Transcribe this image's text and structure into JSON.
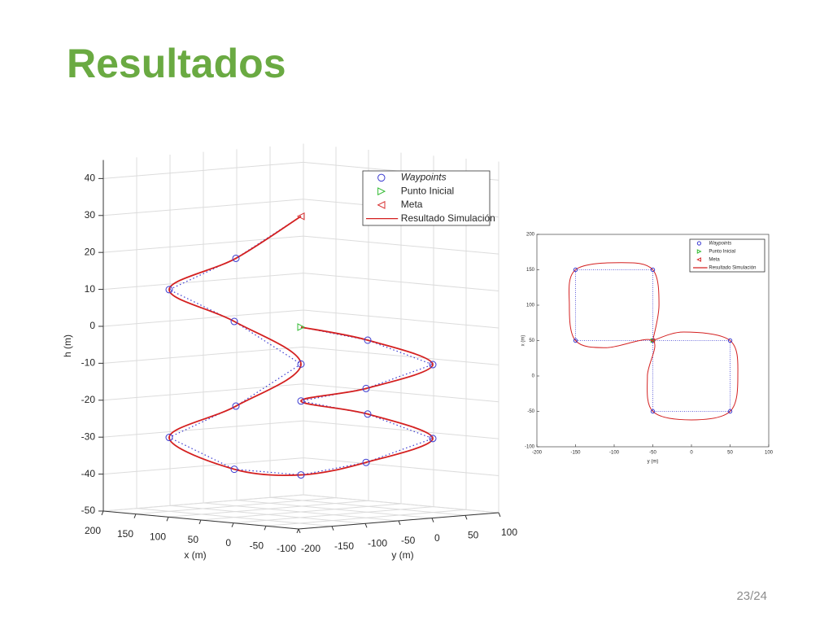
{
  "slide": {
    "title": "Resultados",
    "page": "23/24"
  },
  "chart_data": [
    {
      "type": "line3d",
      "xlabel": "x (m)",
      "ylabel": "y (m)",
      "zlabel": "h (m)",
      "xlim": [
        -100,
        200
      ],
      "ylim": [
        -200,
        100
      ],
      "zlim": [
        -50,
        45
      ],
      "xticks": [
        200,
        150,
        100,
        50,
        0,
        -50,
        -100
      ],
      "yticks": [
        -200,
        -150,
        -100,
        -50,
        0,
        50,
        100
      ],
      "zticks": [
        -50,
        -40,
        -30,
        -20,
        -10,
        0,
        10,
        20,
        30,
        40
      ],
      "grid": true,
      "legend": "northeast",
      "series": [
        {
          "name": "Waypoints",
          "color": "#3a3ad0",
          "marker": "circle",
          "x": [
            50,
            -50,
            -50,
            50,
            50,
            -50,
            -50,
            50,
            50,
            150,
            150,
            50,
            50,
            150,
            150
          ],
          "y": [
            50,
            50,
            -50,
            -50,
            50,
            50,
            -50,
            -50,
            -150,
            -150,
            -50,
            -50,
            -150,
            -150,
            -50
          ],
          "z": [
            -5,
            -10,
            -15,
            -20,
            -25,
            -30,
            -35,
            -40,
            -37,
            -30,
            -23,
            -10,
            3,
            10,
            17
          ]
        },
        {
          "name": "Punto Inicial",
          "color": "#33bb33",
          "marker": "triangle-right",
          "x": [
            50
          ],
          "y": [
            -50
          ],
          "z": [
            0
          ]
        },
        {
          "name": "Meta",
          "color": "#d83030",
          "marker": "triangle-left",
          "x": [
            50
          ],
          "y": [
            -50
          ],
          "z": [
            30
          ]
        },
        {
          "name": "Resultado Simulación",
          "color": "#d42020",
          "marker": "line",
          "x": [
            50,
            50,
            -50,
            -50,
            50,
            50,
            -50,
            -50,
            50,
            50,
            150,
            150,
            50,
            50,
            150,
            150,
            50
          ],
          "y": [
            -50,
            50,
            50,
            -50,
            -50,
            50,
            50,
            -50,
            -50,
            -150,
            -150,
            -50,
            -50,
            -150,
            -150,
            -50,
            -50
          ],
          "z": [
            0,
            -5,
            -10,
            -15,
            -20,
            -25,
            -30,
            -35,
            -40,
            -37,
            -30,
            -23,
            -10,
            3,
            10,
            17,
            30
          ]
        }
      ]
    },
    {
      "type": "line",
      "xlabel": "y (m)",
      "ylabel": "x (m)",
      "xlim": [
        -200,
        100
      ],
      "ylim": [
        -100,
        200
      ],
      "xticks": [
        -200,
        -150,
        -100,
        -50,
        0,
        50,
        100
      ],
      "yticks": [
        -100,
        -50,
        0,
        50,
        100,
        150,
        200
      ],
      "grid": false,
      "legend": "northeast",
      "series": [
        {
          "name": "Waypoints",
          "color": "#3a3ad0",
          "marker": "circle",
          "x": [
            -50,
            50,
            50,
            -50,
            -50,
            -150,
            -150,
            -50,
            -50
          ],
          "values": [
            50,
            50,
            -50,
            -50,
            50,
            50,
            150,
            150,
            50
          ]
        },
        {
          "name": "Punto Inicial",
          "color": "#33bb33",
          "marker": "triangle-right",
          "x": [
            -50
          ],
          "values": [
            50
          ]
        },
        {
          "name": "Meta",
          "color": "#d83030",
          "marker": "triangle-left",
          "x": [
            -50
          ],
          "values": [
            50
          ]
        },
        {
          "name": "Resultado Simulación",
          "color": "#d42020",
          "marker": "line",
          "x": [
            -50,
            -10,
            50,
            60,
            50,
            0,
            -50,
            -57,
            -50,
            -110,
            -150,
            -158,
            -150,
            -90,
            -50,
            -42,
            -50
          ],
          "values": [
            50,
            62,
            50,
            0,
            -50,
            -62,
            -50,
            0,
            50,
            40,
            50,
            100,
            150,
            160,
            150,
            100,
            50
          ]
        }
      ]
    }
  ]
}
